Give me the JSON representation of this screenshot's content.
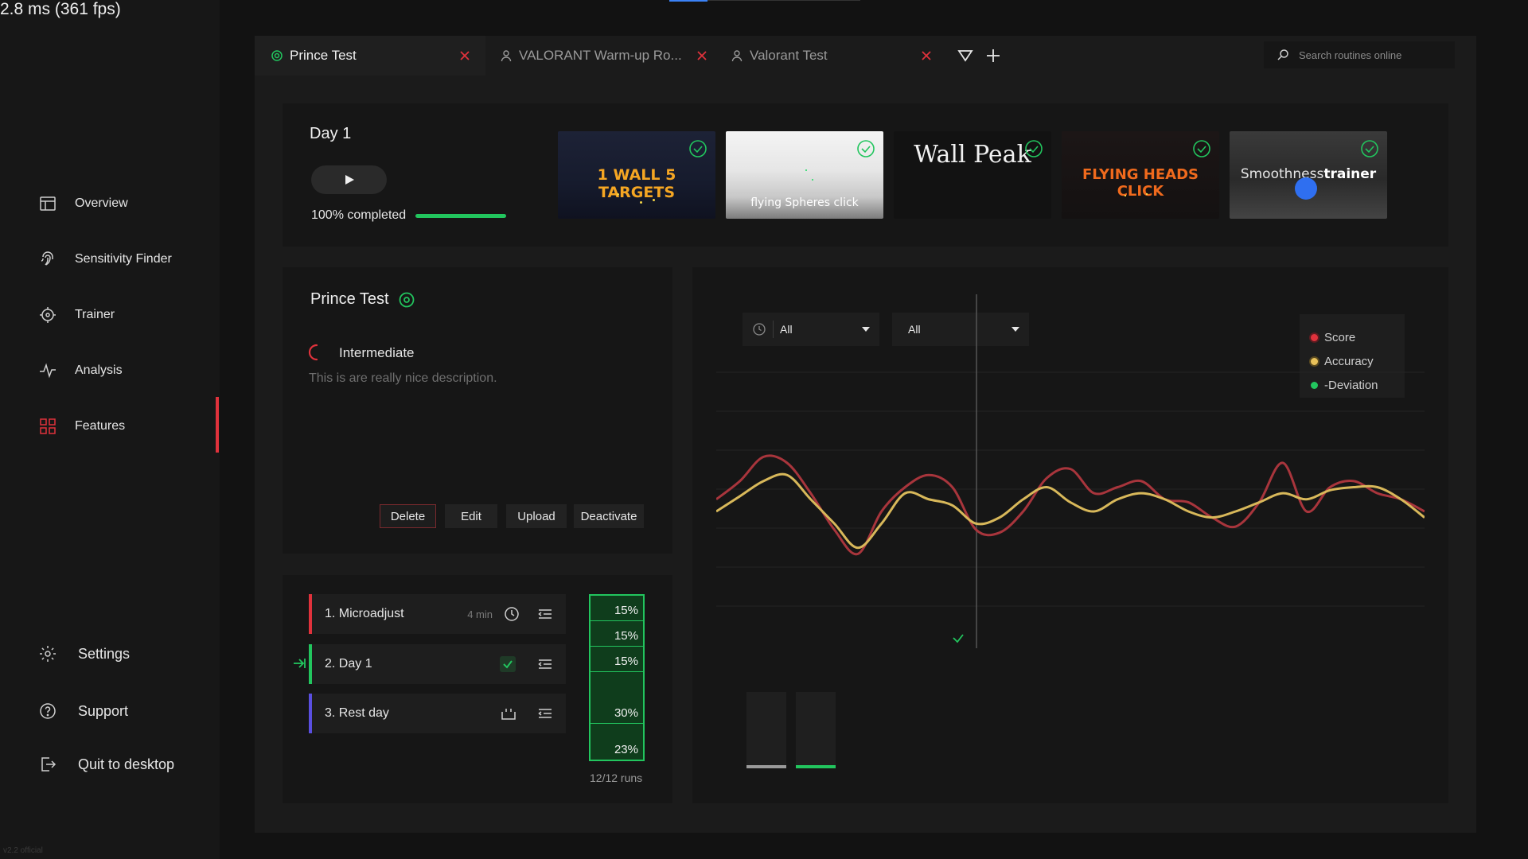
{
  "fps": "2.8 ms (361 fps)",
  "version": "v2.2 official",
  "nav": {
    "items": [
      {
        "label": "Overview",
        "icon": "layout-icon"
      },
      {
        "label": "Sensitivity Finder",
        "icon": "fingerprint-icon"
      },
      {
        "label": "Trainer",
        "icon": "crosshair-icon"
      },
      {
        "label": "Analysis",
        "icon": "pulse-icon"
      },
      {
        "label": "Features",
        "icon": "grid-icon",
        "active": true
      }
    ],
    "bottom": [
      {
        "label": "Settings",
        "icon": "gear-icon"
      },
      {
        "label": "Support",
        "icon": "help-icon"
      },
      {
        "label": "Quit to desktop",
        "icon": "exit-icon"
      }
    ]
  },
  "tabs": [
    {
      "label": "Prince Test",
      "active": true
    },
    {
      "label": "VALORANT Warm-up Ro..."
    },
    {
      "label": "Valorant Test"
    }
  ],
  "search": {
    "placeholder": "Search routines online"
  },
  "day": {
    "title": "Day 1",
    "completed_label": "100% completed",
    "progress": 1.0
  },
  "thumbnails": [
    {
      "label": "1 WALL 5 TARGETS",
      "completed": true
    },
    {
      "label": "flying Spheres click",
      "completed": true
    },
    {
      "label": "Wall Peak",
      "completed": true
    },
    {
      "label": "FLYING HEADS CLICK",
      "completed": true
    },
    {
      "label_a": "Smoothness",
      "label_b": "trainer",
      "completed": true
    }
  ],
  "routine": {
    "title": "Prince Test",
    "level": "Intermediate",
    "description": "This is are really nice description.",
    "buttons": {
      "delete": "Delete",
      "edit": "Edit",
      "upload": "Upload",
      "deactivate": "Deactivate"
    }
  },
  "playlist": [
    {
      "label": "1. Microadjust",
      "duration": "4 min",
      "color": "#e0323c"
    },
    {
      "label": "2. Day 1",
      "color": "#22c55e",
      "current": true
    },
    {
      "label": "3. Rest day",
      "color": "#5a4fe0"
    }
  ],
  "percentages": [
    "15%",
    "15%",
    "15%",
    "30%",
    "23%"
  ],
  "runs": "12/12 runs",
  "filters": {
    "time": "All",
    "type": "All"
  },
  "legend": [
    {
      "label": "Score",
      "color": "#e0323c"
    },
    {
      "label": "Accuracy",
      "color": "#e8c15a"
    },
    {
      "label": "-Deviation",
      "color": "#22c55e"
    }
  ],
  "chart_data": {
    "type": "line",
    "title": "",
    "xlabel": "",
    "ylabel": "",
    "grid": true,
    "legend_position": "top-right",
    "series": [
      {
        "name": "Score",
        "color": "#a8353c",
        "values": [
          56,
          62,
          70,
          68,
          58,
          46,
          38,
          52,
          60,
          64,
          60,
          46,
          45,
          52,
          63,
          66,
          58,
          60,
          62,
          56,
          55,
          50,
          47,
          55,
          68,
          52,
          60,
          62,
          58,
          56,
          52
        ]
      },
      {
        "name": "Accuracy",
        "color": "#d8b85a",
        "values": [
          52,
          57,
          62,
          64,
          56,
          48,
          40,
          48,
          58,
          56,
          54,
          48,
          50,
          56,
          60,
          55,
          52,
          56,
          58,
          56,
          52,
          50,
          52,
          55,
          58,
          56,
          59,
          60,
          60,
          56,
          50
        ]
      }
    ],
    "bars": [
      {
        "color": "#9a9a9a"
      },
      {
        "color": "#22c55e"
      }
    ]
  }
}
